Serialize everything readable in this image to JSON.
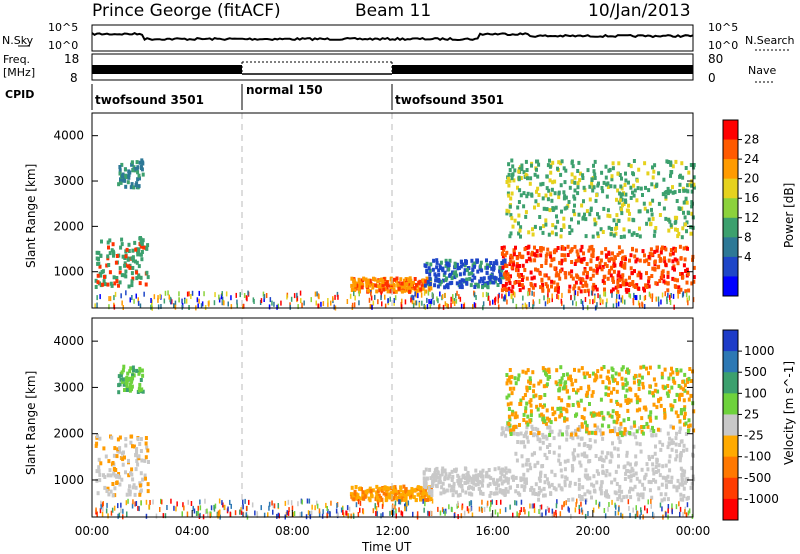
{
  "header": {
    "station": "Prince George (fitACF)",
    "beam": "Beam 11",
    "date": "10/Jan/2013"
  },
  "noise_panel": {
    "left_label": "N.Sky",
    "left_ticks": [
      "10^5",
      "10^0"
    ],
    "right_label": "N.Search",
    "right_ticks": [
      "10^5",
      "10^0"
    ]
  },
  "freq_panel": {
    "left_label_line1": "Freq.",
    "left_label_line2": "[MHz]",
    "left_ticks": [
      "18",
      "8"
    ],
    "right_label": "Nave",
    "right_ticks": [
      "80",
      "0"
    ]
  },
  "cpid": {
    "label": "CPID",
    "segments": [
      {
        "label": "twofsound 3501",
        "start": 0,
        "end": 6
      },
      {
        "label": "normal 150",
        "start": 6,
        "end": 12
      },
      {
        "label": "twofsound 3501",
        "start": 12,
        "end": 24
      }
    ]
  },
  "chart_data": [
    {
      "type": "heatmap",
      "quantity": "Power",
      "ylabel": "Slant Range [km]",
      "ylim": [
        200,
        4500
      ],
      "yticks": [
        "1000",
        "2000",
        "3000",
        "4000"
      ],
      "colorbar_label": "Power [dB]",
      "colorbar_ticks": [
        "28",
        "24",
        "20",
        "16",
        "12",
        "8",
        "4"
      ],
      "colorbar_colors": [
        "#ff0000",
        "#ff5a00",
        "#ff9b00",
        "#e6d21e",
        "#8cd23c",
        "#3ca06e",
        "#2d7896",
        "#1e46c8",
        "#0000ff"
      ],
      "regions": [
        {
          "t0": 0.1,
          "t1": 2.2,
          "r0": 700,
          "r1": 1800,
          "color": "#3ca06e",
          "peak": "#ff3000"
        },
        {
          "t0": 1.0,
          "t1": 2.0,
          "r0": 2900,
          "r1": 3500,
          "color": "#2d7896",
          "peak": "#3ca06e"
        },
        {
          "t0": 10.3,
          "t1": 13.5,
          "r0": 600,
          "r1": 900,
          "color": "#ff9b00",
          "peak": "#ff3000"
        },
        {
          "t0": 13.2,
          "t1": 16.5,
          "r0": 700,
          "r1": 1300,
          "color": "#1e46c8",
          "peak": "#3ca06e"
        },
        {
          "t0": 16.3,
          "t1": 24.0,
          "r0": 600,
          "r1": 1600,
          "color": "#ff5a00",
          "peak": "#ff0000"
        },
        {
          "t0": 16.5,
          "t1": 24.0,
          "r0": 1800,
          "r1": 3500,
          "color": "#3ca06e",
          "peak": "#e6d21e"
        }
      ]
    },
    {
      "type": "heatmap",
      "quantity": "Velocity",
      "ylabel": "Slant Range [km]",
      "ylim": [
        200,
        4500
      ],
      "yticks": [
        "1000",
        "2000",
        "3000",
        "4000"
      ],
      "colorbar_label": "Velocity [m s^-1]",
      "colorbar_ticks": [
        "1000",
        "500",
        "100",
        "25",
        "-25",
        "-100",
        "-500",
        "-1000"
      ],
      "colorbar_colors": [
        "#1e3cc8",
        "#2d78b4",
        "#3ca06e",
        "#6ed23c",
        "#c8c8c8",
        "#ffaa00",
        "#ff7800",
        "#ff3c00",
        "#ff0000"
      ],
      "regions": [
        {
          "t0": 0.1,
          "t1": 2.2,
          "r0": 700,
          "r1": 2000,
          "color": "#c8c8c8",
          "peak": "#ff9b00"
        },
        {
          "t0": 1.0,
          "t1": 2.0,
          "r0": 2900,
          "r1": 3500,
          "color": "#6ed23c",
          "peak": "#3ca06e"
        },
        {
          "t0": 10.3,
          "t1": 13.5,
          "r0": 600,
          "r1": 900,
          "color": "#ffaa00",
          "peak": "#ff7800"
        },
        {
          "t0": 13.2,
          "t1": 16.5,
          "r0": 700,
          "r1": 1300,
          "color": "#c8c8c8",
          "peak": "#c8c8c8"
        },
        {
          "t0": 16.3,
          "t1": 24.0,
          "r0": 600,
          "r1": 2200,
          "color": "#c8c8c8",
          "peak": "#c8c8c8"
        },
        {
          "t0": 16.5,
          "t1": 24.0,
          "r0": 2000,
          "r1": 3500,
          "color": "#ff9b00",
          "peak": "#6ed23c"
        }
      ]
    }
  ],
  "xaxis": {
    "label": "Time UT",
    "ticks": [
      "00:00",
      "04:00",
      "08:00",
      "12:00",
      "16:00",
      "20:00",
      "00:00"
    ],
    "range_hours": [
      0,
      24
    ],
    "mode_change_hours": [
      6,
      12
    ]
  }
}
